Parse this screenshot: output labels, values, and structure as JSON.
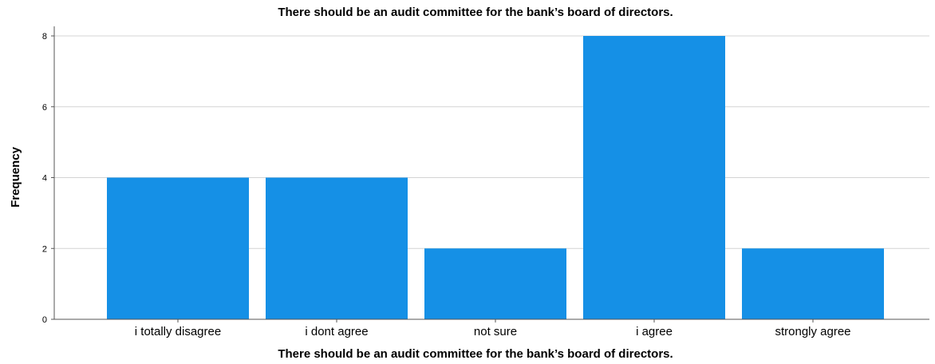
{
  "chart_data": {
    "type": "bar",
    "title": "There should be an audit committee for the bank’s board of directors.",
    "xlabel": "There should be an audit committee for the bank’s board of directors.",
    "ylabel": "Frequency",
    "categories": [
      "i totally disagree",
      "i dont agree",
      "not sure",
      "i agree",
      "strongly agree"
    ],
    "values": [
      4,
      4,
      2,
      8,
      2
    ],
    "ylim": [
      0,
      8
    ],
    "yticks": [
      "0",
      "2",
      "4",
      "6",
      "8"
    ],
    "grid": true,
    "bar_color": "#1590e6"
  }
}
